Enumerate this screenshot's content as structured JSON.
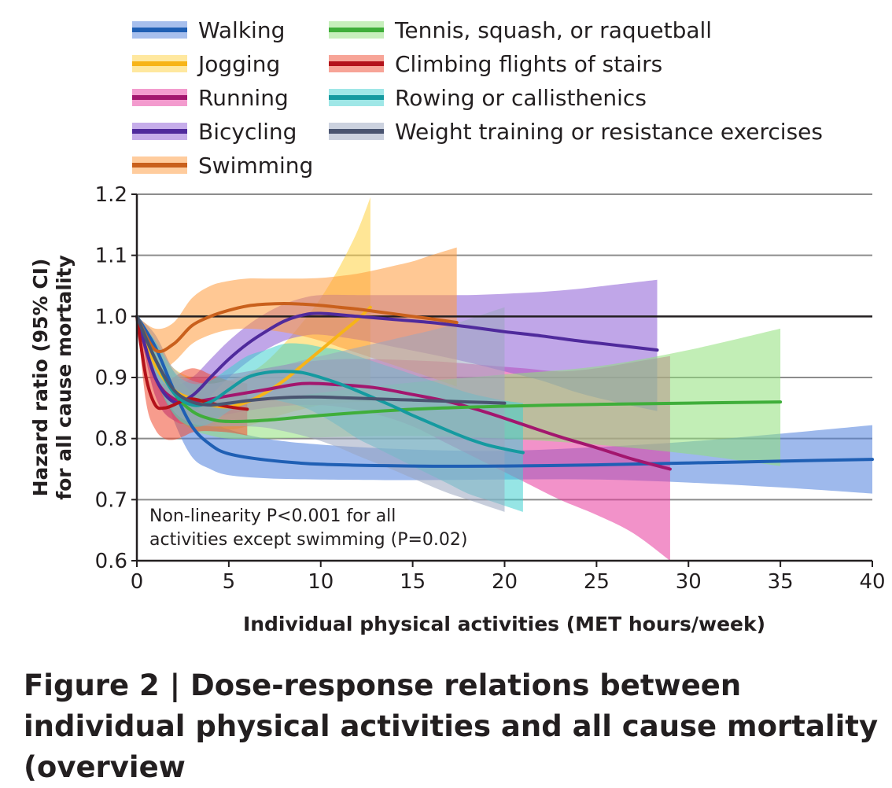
{
  "chart_data": {
    "type": "line",
    "caption": "Figure 2 | Dose-response relations between individual physical activities and all cause mortality (overview",
    "xlabel": "Individual physical activities (MET hours/week)",
    "ylabel_line1": "Hazard ratio (95% CI)",
    "ylabel_line2": "for all cause mortality",
    "xlim": [
      0,
      40
    ],
    "ylim": [
      0.6,
      1.2
    ],
    "xticks": [
      "0",
      "5",
      "10",
      "15",
      "20",
      "25",
      "30",
      "35",
      "40"
    ],
    "yticks": [
      "0.6",
      "0.7",
      "0.8",
      "0.9",
      "1.0",
      "1.1",
      "1.2"
    ],
    "reference_line": 1.0,
    "annotation_line1": "Non-linearity P<0.001 for all",
    "annotation_line2": "activities except swimming (P=0.02)",
    "series": [
      {
        "name": "Walking",
        "color": "#1f5fb4",
        "band_color": "#4f7fdc",
        "x": [
          0,
          1,
          2,
          3,
          4,
          5,
          7,
          10,
          15,
          20,
          25,
          30,
          35,
          40
        ],
        "y": [
          1.0,
          0.95,
          0.88,
          0.82,
          0.79,
          0.775,
          0.765,
          0.758,
          0.755,
          0.755,
          0.757,
          0.76,
          0.763,
          0.766
        ],
        "lower": [
          1.0,
          0.92,
          0.83,
          0.77,
          0.75,
          0.74,
          0.735,
          0.733,
          0.732,
          0.733,
          0.733,
          0.728,
          0.72,
          0.71
        ],
        "upper": [
          1.0,
          0.97,
          0.91,
          0.86,
          0.83,
          0.815,
          0.8,
          0.79,
          0.782,
          0.78,
          0.786,
          0.795,
          0.808,
          0.822
        ]
      },
      {
        "name": "Jogging",
        "color": "#f7b418",
        "band_color": "#ffd23f",
        "x": [
          0,
          1,
          2,
          3,
          4,
          5,
          6,
          7,
          8,
          9,
          10,
          11,
          12,
          12.7
        ],
        "y": [
          1.0,
          0.92,
          0.88,
          0.865,
          0.855,
          0.852,
          0.86,
          0.875,
          0.895,
          0.92,
          0.945,
          0.97,
          0.995,
          1.015
        ],
        "lower": [
          1.0,
          0.89,
          0.85,
          0.83,
          0.82,
          0.815,
          0.82,
          0.83,
          0.84,
          0.848,
          0.855,
          0.858,
          0.86,
          0.86
        ],
        "upper": [
          1.0,
          0.95,
          0.915,
          0.9,
          0.895,
          0.895,
          0.905,
          0.925,
          0.955,
          0.99,
          1.03,
          1.08,
          1.14,
          1.195
        ]
      },
      {
        "name": "Running",
        "color": "#a3166e",
        "band_color": "#e8389d",
        "x": [
          0,
          1,
          2,
          3,
          5,
          7,
          9,
          11,
          13,
          15,
          17,
          19,
          21,
          23,
          25,
          27,
          29
        ],
        "y": [
          1.0,
          0.9,
          0.865,
          0.86,
          0.87,
          0.88,
          0.89,
          0.888,
          0.883,
          0.872,
          0.86,
          0.843,
          0.823,
          0.803,
          0.785,
          0.766,
          0.75
        ],
        "lower": [
          1.0,
          0.87,
          0.83,
          0.825,
          0.84,
          0.85,
          0.855,
          0.852,
          0.84,
          0.82,
          0.79,
          0.76,
          0.73,
          0.7,
          0.675,
          0.645,
          0.6
        ],
        "upper": [
          1.0,
          0.93,
          0.9,
          0.9,
          0.905,
          0.915,
          0.925,
          0.93,
          0.93,
          0.928,
          0.925,
          0.92,
          0.915,
          0.91,
          0.915,
          0.925,
          0.935
        ]
      },
      {
        "name": "Bicycling",
        "color": "#4f2a9c",
        "band_color": "#8d5cd6",
        "x": [
          0,
          1,
          2,
          3,
          4,
          5,
          6,
          7,
          8,
          9,
          10,
          12,
          14,
          16,
          18,
          20,
          22,
          24,
          26,
          28.3
        ],
        "y": [
          1.0,
          0.9,
          0.86,
          0.87,
          0.9,
          0.93,
          0.955,
          0.975,
          0.992,
          1.002,
          1.005,
          1.0,
          0.995,
          0.99,
          0.983,
          0.975,
          0.968,
          0.96,
          0.953,
          0.945
        ],
        "lower": [
          1.0,
          0.87,
          0.83,
          0.84,
          0.87,
          0.9,
          0.925,
          0.945,
          0.96,
          0.968,
          0.97,
          0.962,
          0.95,
          0.938,
          0.925,
          0.91,
          0.895,
          0.875,
          0.86,
          0.845
        ],
        "upper": [
          1.0,
          0.93,
          0.89,
          0.9,
          0.93,
          0.96,
          0.985,
          1.005,
          1.02,
          1.03,
          1.035,
          1.035,
          1.035,
          1.035,
          1.035,
          1.037,
          1.04,
          1.045,
          1.052,
          1.06
        ]
      },
      {
        "name": "Swimming",
        "color": "#c9601c",
        "band_color": "#ff9a3c",
        "x": [
          0,
          1,
          2,
          3,
          4,
          5,
          6,
          7,
          8,
          9,
          10,
          11,
          12,
          13,
          14,
          15,
          16,
          17.4
        ],
        "y": [
          1.0,
          0.945,
          0.955,
          0.985,
          1.0,
          1.01,
          1.017,
          1.02,
          1.021,
          1.02,
          1.018,
          1.015,
          1.012,
          1.008,
          1.004,
          1.0,
          0.996,
          0.99
        ],
        "lower": [
          1.0,
          0.91,
          0.925,
          0.955,
          0.97,
          0.978,
          0.98,
          0.978,
          0.974,
          0.968,
          0.96,
          0.95,
          0.94,
          0.93,
          0.92,
          0.91,
          0.9,
          0.885
        ],
        "upper": [
          1.0,
          0.98,
          0.99,
          1.03,
          1.05,
          1.058,
          1.062,
          1.062,
          1.062,
          1.062,
          1.063,
          1.066,
          1.07,
          1.076,
          1.083,
          1.09,
          1.1,
          1.113
        ]
      },
      {
        "name": "Tennis, squash, or raquetball",
        "color": "#3fae3a",
        "band_color": "#8fe07a",
        "x": [
          0,
          1,
          2,
          3,
          4,
          5,
          7,
          10,
          15,
          20,
          25,
          30,
          35
        ],
        "y": [
          1.0,
          0.93,
          0.875,
          0.845,
          0.832,
          0.828,
          0.83,
          0.838,
          0.848,
          0.853,
          0.856,
          0.858,
          0.86
        ],
        "lower": [
          1.0,
          0.9,
          0.84,
          0.815,
          0.805,
          0.8,
          0.8,
          0.802,
          0.804,
          0.8,
          0.79,
          0.775,
          0.755
        ],
        "upper": [
          1.0,
          0.96,
          0.91,
          0.875,
          0.86,
          0.86,
          0.862,
          0.875,
          0.892,
          0.905,
          0.918,
          0.945,
          0.98
        ]
      },
      {
        "name": "Climbing flights of stairs",
        "color": "#b3121a",
        "band_color": "#f04a2f",
        "x": [
          0,
          0.5,
          1,
          1.5,
          2,
          2.5,
          3,
          3.5,
          4,
          5,
          6
        ],
        "y": [
          1.0,
          0.9,
          0.855,
          0.85,
          0.855,
          0.862,
          0.865,
          0.862,
          0.858,
          0.852,
          0.848
        ],
        "lower": [
          1.0,
          0.86,
          0.815,
          0.8,
          0.798,
          0.803,
          0.81,
          0.812,
          0.812,
          0.81,
          0.805
        ],
        "upper": [
          1.0,
          0.94,
          0.895,
          0.89,
          0.9,
          0.91,
          0.915,
          0.912,
          0.905,
          0.895,
          0.89
        ]
      },
      {
        "name": "Rowing or callisthenics",
        "color": "#159aa0",
        "band_color": "#3fd0d0",
        "x": [
          0,
          1,
          2,
          3,
          4,
          5,
          6,
          7,
          8,
          9,
          10,
          11,
          12,
          13,
          14,
          15,
          16,
          17,
          18,
          19,
          20,
          21
        ],
        "y": [
          1.0,
          0.93,
          0.875,
          0.855,
          0.86,
          0.88,
          0.9,
          0.908,
          0.91,
          0.908,
          0.9,
          0.89,
          0.878,
          0.865,
          0.852,
          0.838,
          0.825,
          0.812,
          0.8,
          0.79,
          0.783,
          0.777
        ],
        "lower": [
          1.0,
          0.9,
          0.84,
          0.82,
          0.825,
          0.845,
          0.86,
          0.865,
          0.86,
          0.852,
          0.838,
          0.82,
          0.8,
          0.785,
          0.77,
          0.755,
          0.74,
          0.725,
          0.71,
          0.7,
          0.69,
          0.68
        ],
        "upper": [
          1.0,
          0.96,
          0.91,
          0.89,
          0.895,
          0.915,
          0.935,
          0.945,
          0.955,
          0.955,
          0.95,
          0.945,
          0.935,
          0.925,
          0.915,
          0.905,
          0.895,
          0.885,
          0.875,
          0.868,
          0.862,
          0.858
        ]
      },
      {
        "name": "Weight training or resistance exercises",
        "color": "#4a5470",
        "band_color": "#9aa6c0",
        "x": [
          0,
          1,
          2,
          3,
          4,
          5,
          6,
          7,
          8,
          9,
          10,
          11,
          12,
          13,
          14,
          15,
          16,
          17,
          18,
          19,
          20
        ],
        "y": [
          1.0,
          0.93,
          0.88,
          0.86,
          0.855,
          0.858,
          0.862,
          0.865,
          0.867,
          0.868,
          0.868,
          0.867,
          0.866,
          0.865,
          0.864,
          0.863,
          0.862,
          0.861,
          0.86,
          0.859,
          0.858
        ],
        "lower": [
          1.0,
          0.9,
          0.845,
          0.825,
          0.82,
          0.82,
          0.82,
          0.818,
          0.812,
          0.805,
          0.796,
          0.785,
          0.772,
          0.76,
          0.748,
          0.735,
          0.722,
          0.71,
          0.7,
          0.69,
          0.68
        ],
        "upper": [
          1.0,
          0.96,
          0.915,
          0.895,
          0.89,
          0.896,
          0.904,
          0.912,
          0.92,
          0.928,
          0.935,
          0.942,
          0.949,
          0.956,
          0.963,
          0.97,
          0.977,
          0.985,
          0.995,
          1.005,
          1.015
        ]
      }
    ]
  }
}
